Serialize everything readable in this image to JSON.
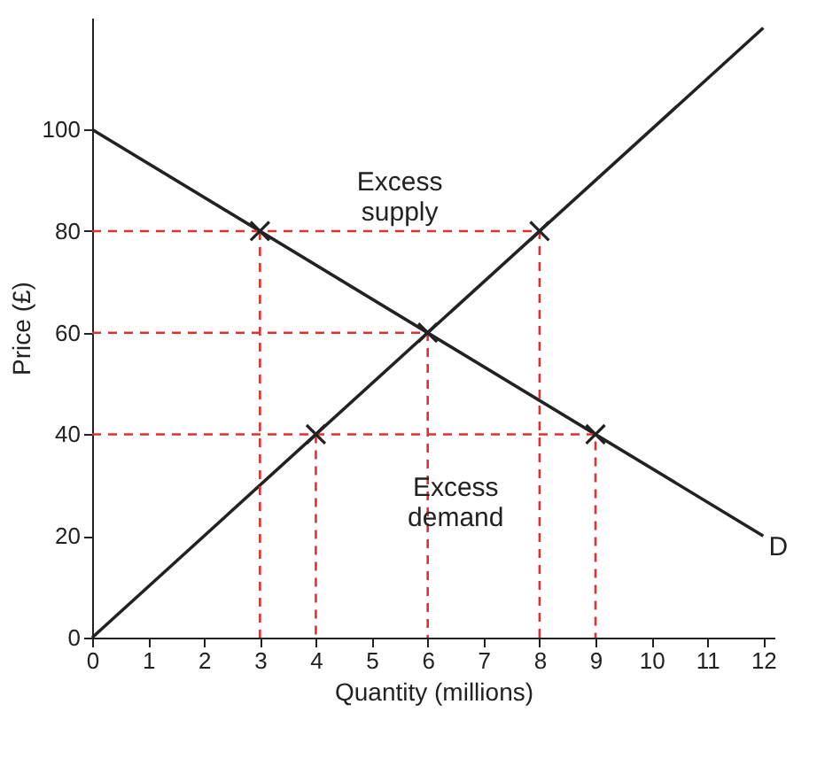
{
  "chart_data": {
    "type": "line",
    "xlabel": "Quantity (millions)",
    "ylabel": "Price (£)",
    "xlim": [
      0,
      12.2
    ],
    "ylim": [
      0,
      122
    ],
    "xticks": [
      0,
      1,
      2,
      3,
      4,
      5,
      6,
      7,
      8,
      9,
      10,
      11,
      12
    ],
    "yticks": [
      0,
      20,
      40,
      60,
      80,
      100
    ],
    "grid": false,
    "series": [
      {
        "color": "#222222",
        "x": [
          0,
          12
        ],
        "values": [
          100,
          20
        ],
        "line_style": "solid"
      },
      {
        "color": "#222222",
        "x": [
          0,
          12
        ],
        "values": [
          0,
          120
        ],
        "line_style": "solid"
      },
      {
        "color": "#e03030",
        "x": [
          0,
          8,
          8
        ],
        "values": [
          80,
          80,
          0
        ],
        "line_style": "dashed"
      },
      {
        "color": "#e03030",
        "x": [
          3,
          3
        ],
        "values": [
          80,
          0
        ],
        "line_style": "dashed"
      },
      {
        "color": "#e03030",
        "x": [
          0,
          6,
          6
        ],
        "values": [
          60,
          60,
          0
        ],
        "line_style": "dashed"
      },
      {
        "color": "#e03030",
        "x": [
          0,
          9,
          9
        ],
        "values": [
          40,
          40,
          0
        ],
        "line_style": "dashed"
      },
      {
        "color": "#e03030",
        "x": [
          4,
          4
        ],
        "values": [
          40,
          0
        ],
        "line_style": "dashed"
      },
      {
        "type": "scatter",
        "color": "#222222",
        "marker": "cross",
        "x": [
          3,
          8,
          6,
          4,
          9
        ],
        "values": [
          80,
          80,
          60,
          40,
          40
        ]
      }
    ],
    "annotations": [
      {
        "text": "Excess supply",
        "x": 5.5,
        "y": 80
      },
      {
        "text": "Excess demand",
        "x": 6.5,
        "y": 40
      },
      {
        "text": "D",
        "x": 12,
        "y": 20
      }
    ]
  }
}
